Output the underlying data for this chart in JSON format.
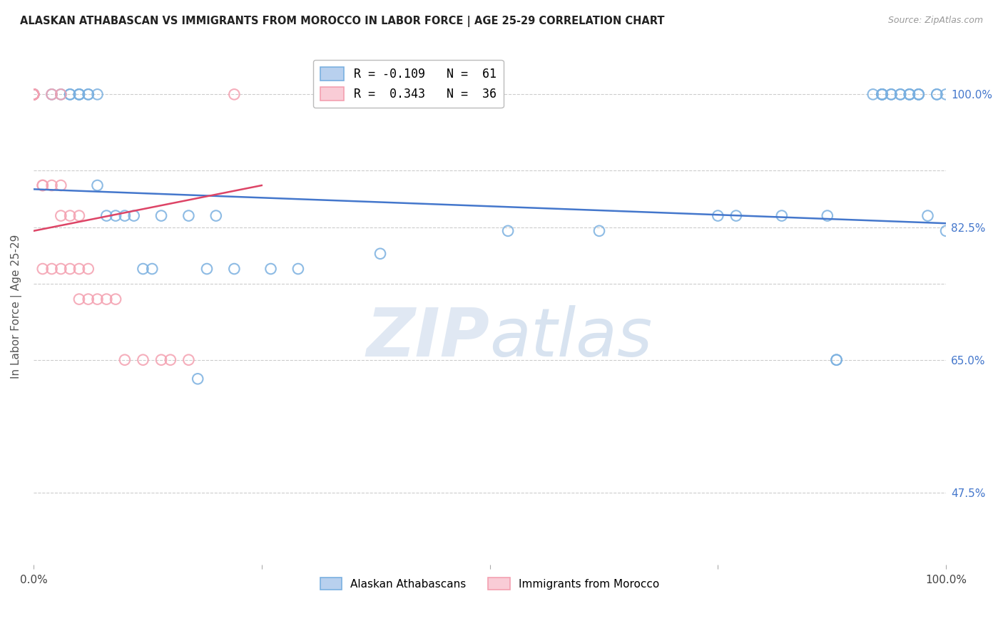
{
  "title": "ALASKAN ATHABASCAN VS IMMIGRANTS FROM MOROCCO IN LABOR FORCE | AGE 25-29 CORRELATION CHART",
  "source": "Source: ZipAtlas.com",
  "ylabel": "In Labor Force | Age 25-29",
  "xlim": [
    0.0,
    1.0
  ],
  "ylim": [
    0.38,
    1.06
  ],
  "yticks": [
    1.0,
    0.825,
    0.65,
    0.475
  ],
  "ytick_labels": [
    "100.0%",
    "82.5%",
    "65.0%",
    "47.5%"
  ],
  "grid_y": [
    1.0,
    0.9,
    0.825,
    0.75,
    0.65,
    0.475
  ],
  "blue_color": "#7ab0e0",
  "pink_color": "#f4a0b0",
  "blue_line_color": "#4477cc",
  "pink_line_color": "#dd4466",
  "blue_line_x": [
    0.0,
    1.0
  ],
  "blue_line_y": [
    0.875,
    0.83
  ],
  "pink_line_x": [
    0.0,
    0.25
  ],
  "pink_line_y": [
    0.82,
    0.88
  ],
  "legend_label_blue": "Alaskan Athabascans",
  "legend_label_pink": "Immigrants from Morocco",
  "blue_x": [
    0.0,
    0.0,
    0.0,
    0.0,
    0.0,
    0.0,
    0.0,
    0.0,
    0.02,
    0.03,
    0.04,
    0.04,
    0.05,
    0.05,
    0.05,
    0.06,
    0.06,
    0.07,
    0.07,
    0.08,
    0.09,
    0.1,
    0.11,
    0.12,
    0.13,
    0.14,
    0.17,
    0.18,
    0.19,
    0.2,
    0.22,
    0.26,
    0.29,
    0.38,
    0.52,
    0.62,
    0.75,
    0.77,
    0.82,
    0.87,
    0.88,
    0.88,
    0.92,
    0.93,
    0.93,
    0.93,
    0.93,
    0.94,
    0.94,
    0.95,
    0.95,
    0.96,
    0.96,
    0.96,
    0.97,
    0.97,
    0.97,
    0.98,
    0.99,
    0.99,
    1.0,
    1.0
  ],
  "blue_y": [
    1.0,
    1.0,
    1.0,
    1.0,
    1.0,
    1.0,
    1.0,
    1.0,
    1.0,
    1.0,
    1.0,
    1.0,
    1.0,
    1.0,
    1.0,
    1.0,
    1.0,
    1.0,
    0.88,
    0.84,
    0.84,
    0.84,
    0.84,
    0.77,
    0.77,
    0.84,
    0.84,
    0.625,
    0.77,
    0.84,
    0.77,
    0.77,
    0.77,
    0.79,
    0.82,
    0.82,
    0.84,
    0.84,
    0.84,
    0.84,
    0.65,
    0.65,
    1.0,
    1.0,
    1.0,
    1.0,
    1.0,
    1.0,
    1.0,
    1.0,
    1.0,
    1.0,
    1.0,
    1.0,
    1.0,
    1.0,
    1.0,
    0.84,
    1.0,
    1.0,
    0.82,
    1.0
  ],
  "pink_x": [
    0.0,
    0.0,
    0.0,
    0.0,
    0.0,
    0.0,
    0.0,
    0.0,
    0.0,
    0.0,
    0.01,
    0.01,
    0.01,
    0.02,
    0.02,
    0.02,
    0.03,
    0.03,
    0.03,
    0.03,
    0.04,
    0.04,
    0.05,
    0.05,
    0.05,
    0.06,
    0.06,
    0.07,
    0.08,
    0.09,
    0.1,
    0.12,
    0.14,
    0.15,
    0.17,
    0.22
  ],
  "pink_y": [
    1.0,
    1.0,
    1.0,
    1.0,
    1.0,
    1.0,
    1.0,
    1.0,
    1.0,
    1.0,
    0.88,
    0.88,
    0.77,
    1.0,
    0.88,
    0.77,
    1.0,
    0.88,
    0.84,
    0.77,
    0.84,
    0.77,
    0.84,
    0.77,
    0.73,
    0.77,
    0.73,
    0.73,
    0.73,
    0.73,
    0.65,
    0.65,
    0.65,
    0.65,
    0.65,
    1.0
  ],
  "watermark_zip": "ZIP",
  "watermark_atlas": "atlas",
  "background_color": "#ffffff"
}
